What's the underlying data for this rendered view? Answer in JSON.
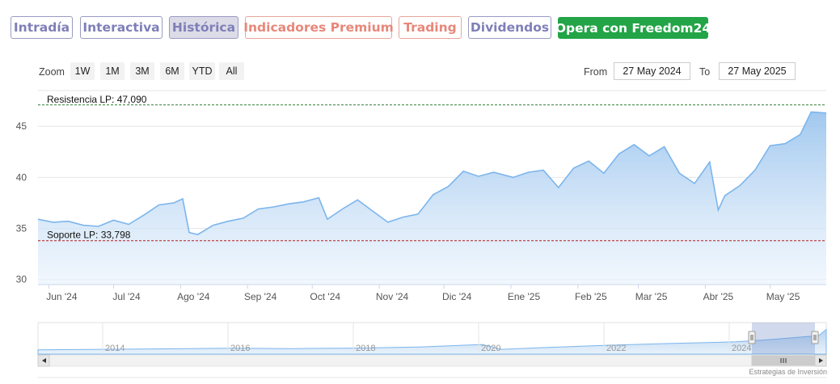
{
  "tabs": [
    {
      "label": "Intradía",
      "style": "purple"
    },
    {
      "label": "Interactiva",
      "style": "purple"
    },
    {
      "label": "Histórica",
      "style": "active"
    },
    {
      "label": "Indicadores Premium",
      "style": "salmon"
    },
    {
      "label": "Trading",
      "style": "salmon"
    },
    {
      "label": "Dividendos",
      "style": "purple"
    },
    {
      "label": "Opera con Freedom24",
      "style": "green"
    }
  ],
  "zoom": {
    "label": "Zoom",
    "buttons": [
      "1W",
      "1M",
      "3M",
      "6M",
      "YTD",
      "All"
    ]
  },
  "range": {
    "from_label": "From",
    "from_value": "27 May 2024",
    "to_label": "To",
    "to_value": "27 May 2025"
  },
  "credit": "Estrategias de Inversión",
  "colors": {
    "line": "#7cb5ec",
    "area_top": "#a8cdf0",
    "resistance": "#2e7d32",
    "support": "#b71c1c",
    "grid": "#e6e6e6"
  },
  "chart_data": {
    "type": "area",
    "title": "",
    "xlabel": "",
    "ylabel": "",
    "ylim": [
      29.5,
      48.5
    ],
    "yticks": [
      30,
      35,
      40,
      45
    ],
    "xticks": [
      "Jun '24",
      "Jul '24",
      "Ago '24",
      "Sep '24",
      "Oct '24",
      "Nov '24",
      "Dic '24",
      "Ene '25",
      "Feb '25",
      "Mar '25",
      "Abr '25",
      "May '25"
    ],
    "grid": "horizontal",
    "x_start": "2024-05-27",
    "x_end": "2025-05-27",
    "series": [
      {
        "values": [
          [
            "2024-05-27",
            35.9
          ],
          [
            "2024-06-03",
            35.6
          ],
          [
            "2024-06-10",
            35.7
          ],
          [
            "2024-06-17",
            35.3
          ],
          [
            "2024-06-24",
            35.2
          ],
          [
            "2024-07-01",
            35.8
          ],
          [
            "2024-07-08",
            35.4
          ],
          [
            "2024-07-15",
            36.3
          ],
          [
            "2024-07-22",
            37.3
          ],
          [
            "2024-07-29",
            37.5
          ],
          [
            "2024-08-02",
            37.9
          ],
          [
            "2024-08-05",
            34.6
          ],
          [
            "2024-08-09",
            34.4
          ],
          [
            "2024-08-16",
            35.3
          ],
          [
            "2024-08-23",
            35.7
          ],
          [
            "2024-08-30",
            36.0
          ],
          [
            "2024-09-06",
            36.9
          ],
          [
            "2024-09-13",
            37.1
          ],
          [
            "2024-09-20",
            37.4
          ],
          [
            "2024-09-27",
            37.6
          ],
          [
            "2024-10-04",
            38.0
          ],
          [
            "2024-10-08",
            35.9
          ],
          [
            "2024-10-15",
            36.9
          ],
          [
            "2024-10-22",
            37.8
          ],
          [
            "2024-10-29",
            36.7
          ],
          [
            "2024-11-05",
            35.6
          ],
          [
            "2024-11-12",
            36.1
          ],
          [
            "2024-11-19",
            36.4
          ],
          [
            "2024-11-26",
            38.3
          ],
          [
            "2024-12-03",
            39.1
          ],
          [
            "2024-12-10",
            40.6
          ],
          [
            "2024-12-17",
            40.1
          ],
          [
            "2024-12-24",
            40.5
          ],
          [
            "2025-01-02",
            40.0
          ],
          [
            "2025-01-09",
            40.5
          ],
          [
            "2025-01-16",
            40.7
          ],
          [
            "2025-01-23",
            39.0
          ],
          [
            "2025-01-30",
            40.9
          ],
          [
            "2025-02-06",
            41.6
          ],
          [
            "2025-02-13",
            40.4
          ],
          [
            "2025-02-20",
            42.3
          ],
          [
            "2025-02-27",
            43.2
          ],
          [
            "2025-03-06",
            42.1
          ],
          [
            "2025-03-13",
            43.0
          ],
          [
            "2025-03-20",
            40.4
          ],
          [
            "2025-03-27",
            39.4
          ],
          [
            "2025-04-03",
            41.5
          ],
          [
            "2025-04-07",
            36.8
          ],
          [
            "2025-04-10",
            38.2
          ],
          [
            "2025-04-17",
            39.2
          ],
          [
            "2025-04-24",
            40.7
          ],
          [
            "2025-05-01",
            43.1
          ],
          [
            "2025-05-08",
            43.3
          ],
          [
            "2025-05-15",
            44.2
          ],
          [
            "2025-05-20",
            46.4
          ],
          [
            "2025-05-27",
            46.3
          ]
        ]
      }
    ],
    "annotations": [
      {
        "type": "hline",
        "value": 47.09,
        "label": "Resistencia LP: 47,090",
        "style": "dashed",
        "color": "#2e7d32"
      },
      {
        "type": "hline",
        "value": 33.798,
        "label": "Soporte LP: 33,798",
        "style": "dashed",
        "color": "#b71c1c"
      }
    ],
    "navigator": {
      "tick_labels": [
        "2014",
        "2016",
        "2018",
        "2020",
        "2022",
        "2024"
      ],
      "values": [
        [
          2013.0,
          35.0
        ],
        [
          2014.0,
          35.3
        ],
        [
          2015.0,
          35.6
        ],
        [
          2016.0,
          35.9
        ],
        [
          2017.0,
          35.7
        ],
        [
          2018.0,
          36.0
        ],
        [
          2019.0,
          36.6
        ],
        [
          2020.0,
          38.0
        ],
        [
          2020.3,
          35.3
        ],
        [
          2021.0,
          36.3
        ],
        [
          2022.0,
          37.6
        ],
        [
          2023.0,
          38.6
        ],
        [
          2024.0,
          39.5
        ],
        [
          2024.5,
          40.7
        ],
        [
          2025.3,
          43.0
        ]
      ],
      "selection": [
        "2024-05-27",
        "2025-05-27"
      ]
    }
  }
}
